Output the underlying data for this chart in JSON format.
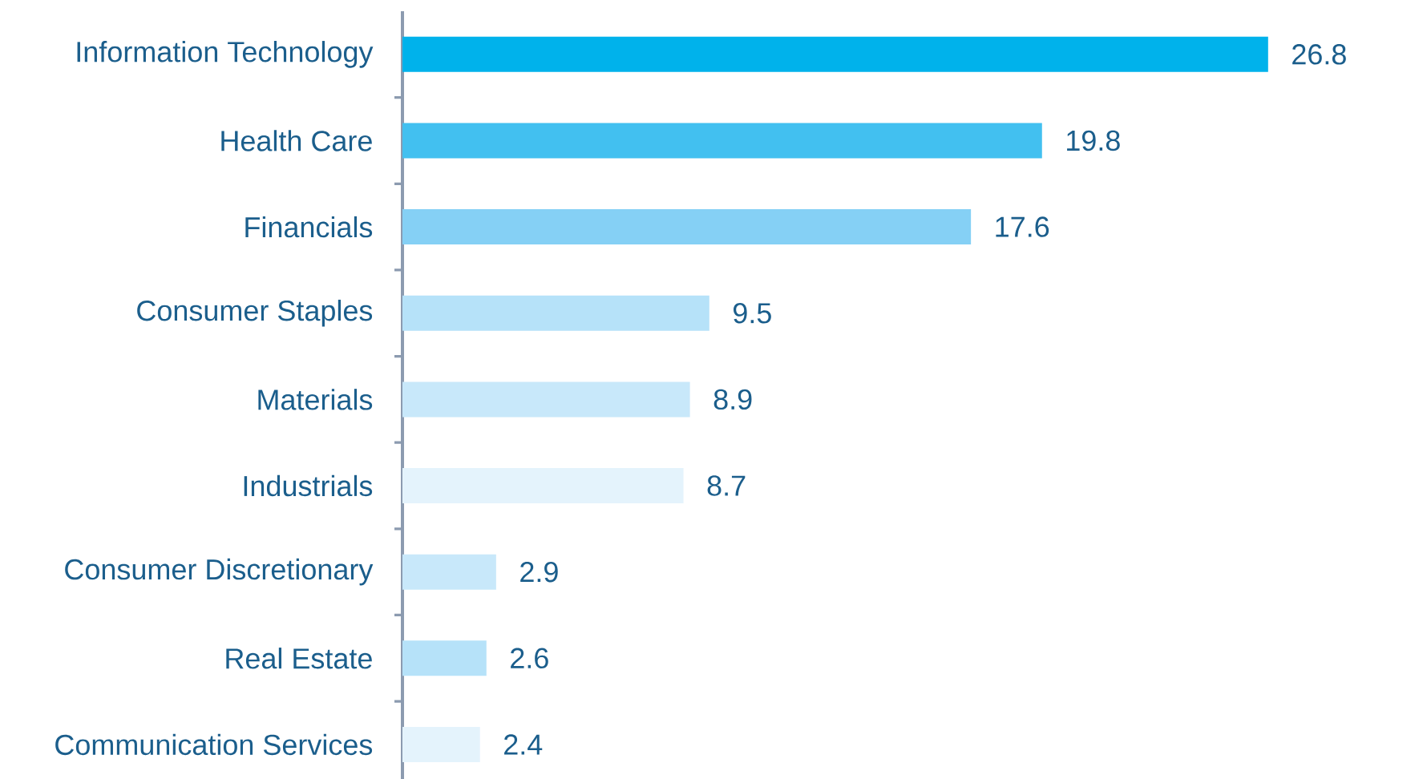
{
  "chart_data": {
    "type": "bar",
    "orientation": "horizontal",
    "data_labels": true,
    "categories": [
      "Information Technology",
      "Health Care",
      "Financials",
      "Consumer Staples",
      "Materials",
      "Industrials",
      "Consumer Discretionary",
      "Real Estate",
      "Communication Services"
    ],
    "values": [
      26.8,
      19.8,
      17.6,
      9.5,
      8.9,
      8.7,
      2.9,
      2.6,
      2.4
    ],
    "colors": [
      "#00b2eb",
      "#42c0f0",
      "#85d0f5",
      "#b6e2f9",
      "#c8e8fa",
      "#e4f3fc",
      "#c8e8fa",
      "#b6e2f9",
      "#e4f3fc"
    ]
  }
}
